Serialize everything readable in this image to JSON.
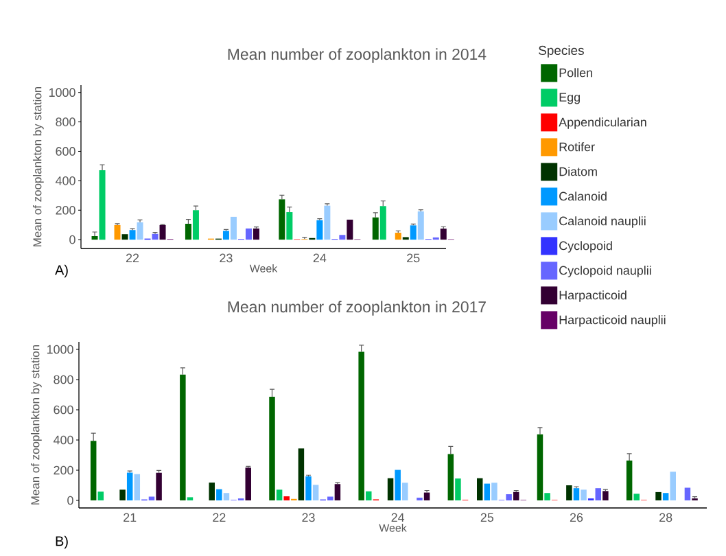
{
  "chart_data": [
    {
      "type": "bar",
      "title": "Mean number of zooplankton in 2014",
      "xlabel": "Week",
      "ylabel": "Mean of zooplankton by station",
      "legend_title": "Species",
      "legend": "right",
      "annotations": [
        "A)"
      ],
      "categories": [
        "22",
        "23",
        "24",
        "25"
      ],
      "ylim": [
        -60,
        1050
      ],
      "yticks": [
        0,
        200,
        400,
        600,
        800,
        1000
      ],
      "series": [
        {
          "name": "Pollen",
          "color": "#006600",
          "values": [
            24,
            108,
            274,
            151
          ],
          "errors": [
            28,
            30,
            28,
            32
          ]
        },
        {
          "name": "Egg",
          "color": "#00cc66",
          "values": [
            472,
            200,
            187,
            228
          ],
          "errors": [
            37,
            29,
            35,
            35
          ]
        },
        {
          "name": "Appendicularian",
          "color": "#ff0000",
          "values": [
            null,
            null,
            3,
            null
          ]
        },
        {
          "name": "Rotifer",
          "color": "#ff9900",
          "values": [
            99,
            7,
            4,
            47
          ],
          "errors": [
            9,
            null,
            11,
            13
          ]
        },
        {
          "name": "Diatom",
          "color": "#003300",
          "values": [
            37,
            7,
            11,
            17
          ]
        },
        {
          "name": "Calanoid",
          "color": "#0099ff",
          "values": [
            65,
            60,
            132,
            97
          ],
          "errors": [
            10,
            9,
            10,
            9
          ]
        },
        {
          "name": "Calanoid nauplii",
          "color": "#99ccff",
          "values": [
            118,
            155,
            231,
            192
          ],
          "errors": [
            16,
            null,
            13,
            11
          ]
        },
        {
          "name": "Cyclopoid",
          "color": "#3333ff",
          "values": [
            7,
            4,
            4,
            4
          ]
        },
        {
          "name": "Cyclopoid nauplii",
          "color": "#6666ff",
          "values": [
            39,
            76,
            32,
            15
          ],
          "errors": [
            10,
            null,
            null,
            null
          ]
        },
        {
          "name": "Harpacticoid",
          "color": "#330033",
          "values": [
            99,
            76,
            136,
            75
          ],
          "errors": [
            4,
            10,
            null,
            13
          ]
        },
        {
          "name": "Harpacticoid nauplii",
          "color": "#660066",
          "values": [
            4,
            null,
            3,
            3
          ]
        }
      ]
    },
    {
      "type": "bar",
      "title": "Mean number of zooplankton in 2017",
      "xlabel": "Week",
      "ylabel": "Mean of zooplankton by station",
      "annotations": [
        "B)"
      ],
      "categories": [
        "21",
        "22",
        "23",
        "24",
        "25",
        "26",
        "28"
      ],
      "ylim": [
        -50,
        1050
      ],
      "yticks": [
        0,
        200,
        400,
        600,
        800,
        1000
      ],
      "series": [
        {
          "color": "#006600",
          "values": [
            394,
            833,
            686,
            984,
            307,
            438,
            264
          ],
          "errors": [
            51,
            45,
            50,
            44,
            50,
            44,
            46
          ]
        },
        {
          "color": "#00cc66",
          "values": [
            58,
            21,
            71,
            60,
            145,
            49,
            44
          ]
        },
        {
          "color": "#ff0000",
          "values": [
            null,
            null,
            27,
            7,
            4,
            3,
            3
          ]
        },
        {
          "color": "#ff9900",
          "values": [
            null,
            null,
            10,
            null,
            null,
            null,
            null
          ]
        },
        {
          "color": "#003300",
          "values": [
            71,
            118,
            344,
            147,
            147,
            100,
            55
          ]
        },
        {
          "color": "#0099ff",
          "values": [
            184,
            74,
            159,
            202,
            111,
            81,
            49
          ],
          "errors": [
            11,
            null,
            8,
            null,
            null,
            10,
            null
          ]
        },
        {
          "color": "#99ccff",
          "values": [
            174,
            49,
            103,
            117,
            117,
            71,
            190
          ],
          "errors": [
            null,
            null,
            null,
            null,
            null,
            null,
            null
          ]
        },
        {
          "color": "#3333ff",
          "values": [
            6,
            3,
            6,
            null,
            3,
            13,
            null
          ]
        },
        {
          "color": "#6666ff",
          "values": [
            25,
            13,
            25,
            18,
            41,
            81,
            84
          ]
        },
        {
          "color": "#330033",
          "values": [
            183,
            217,
            108,
            52,
            56,
            62,
            13
          ],
          "errors": [
            15,
            9,
            10,
            14,
            10,
            10,
            11
          ]
        },
        {
          "color": "#660066",
          "values": [
            null,
            null,
            null,
            null,
            3,
            null,
            null
          ]
        }
      ]
    }
  ]
}
